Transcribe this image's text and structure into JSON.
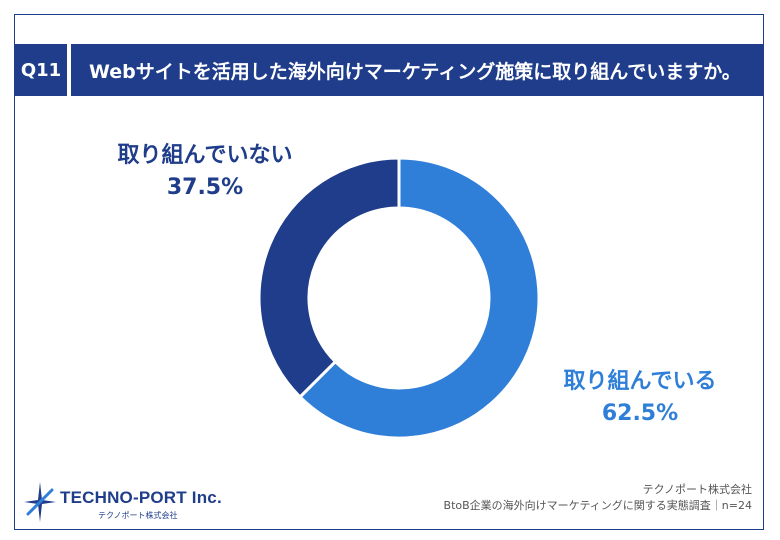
{
  "header": {
    "question_number": "Q11",
    "question_text": "Webサイトを活用した海外向けマーケティング施策に取り組んでいますか。"
  },
  "chart_data": {
    "type": "pie",
    "donut": true,
    "slices": [
      {
        "label": "取り組んでいる",
        "value": 62.5,
        "value_label": "62.5%",
        "color": "#2f7fd8"
      },
      {
        "label": "取り組んでいない",
        "value": 37.5,
        "value_label": "37.5%",
        "color": "#1f3d8a"
      }
    ],
    "start_angle": "12 o'clock",
    "direction": "clockwise"
  },
  "footer": {
    "company": "テクノポート株式会社",
    "survey": "BtoB企業の海外向けマーケティングに関する実態調査｜n=24"
  },
  "logo": {
    "name": "TECHNO-PORT Inc.",
    "sub": "テクノポート株式会社"
  },
  "colors": {
    "primary": "#1f3d8a",
    "accent": "#2f7fd8"
  }
}
